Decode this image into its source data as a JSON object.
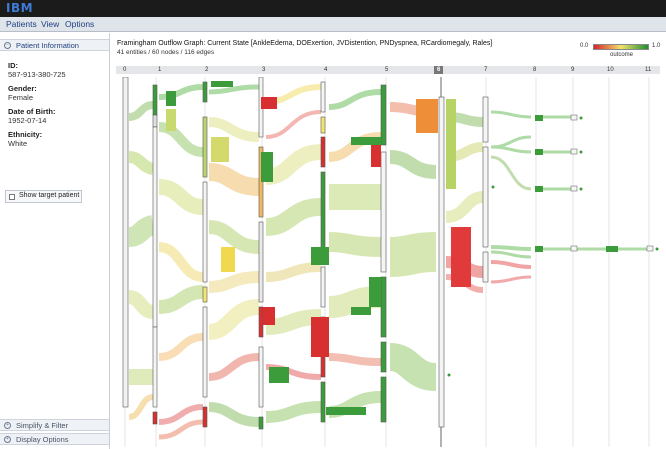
{
  "app": {
    "logo_text": "IBM"
  },
  "menu": [
    "Patients",
    "View",
    "Options"
  ],
  "sidebar": {
    "header": "Patient Information",
    "fields": [
      {
        "label": "ID:",
        "value": "587-913-380-725"
      },
      {
        "label": "Gender:",
        "value": "Female"
      },
      {
        "label": "Date of Birth:",
        "value": "1952-07-14"
      },
      {
        "label": "Ethnicity:",
        "value": "White"
      }
    ],
    "show_target": "Show target patient",
    "bottom_headers": [
      "Simplify & Filter",
      "Display Options"
    ]
  },
  "main": {
    "title": "Framingham Outflow Graph: Current State [AnkleEdema, DOExertion, JVDistention, PNDyspnea, RCardiomegaly, Rales]",
    "subtitle": "41 entities / 60 nodes / 116 edges",
    "legend": {
      "low": "0.0",
      "high": "1.0",
      "caption": "outcome",
      "colors": [
        "#d8232a",
        "#f0e36b",
        "#1d8f2f"
      ]
    },
    "steps": [
      "0",
      "1",
      "2",
      "3",
      "4",
      "5",
      "6",
      "7",
      "8",
      "9",
      "10",
      "11"
    ],
    "active_step": "6"
  }
}
